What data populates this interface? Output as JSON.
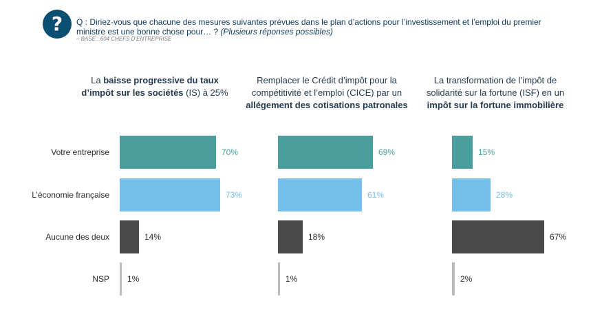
{
  "header": {
    "icon": "question-icon",
    "icon_glyph": "?",
    "question_text": "Q : Diriez-vous que chacune des mesures suivantes prévues dans le plan d’actions pour l’investissement et l’emploi du premier ministre est une bonne chose pour… ?",
    "question_sub": "(Plusieurs réponses possibles)",
    "base": "– BASE : 604 CHEFS D’ENTREPRISE"
  },
  "columns": [
    {
      "t1": "La ",
      "t2": "baisse progressive du taux d’impôt sur les sociétés",
      "t3": " (IS) à 25%"
    },
    {
      "t1": "Remplacer le Crédit d’impôt pour la compétitivité et l’emploi (CICE) par un ",
      "t2": "allégement des cotisations patronales",
      "t3": ""
    },
    {
      "t1": "La transformation de l’impôt de solidarité sur la fortune (ISF) en un ",
      "t2": "impôt sur la fortune immobilière",
      "t3": ""
    }
  ],
  "chart_data": {
    "type": "bar",
    "orientation": "horizontal",
    "categories": [
      "Votre entreprise",
      "L’économie française",
      "Aucune des deux",
      "NSP"
    ],
    "colors": [
      "#4a9e9e",
      "#74c0ea",
      "#4a4a4a",
      "#bdbdbd"
    ],
    "label_colors": [
      "#4a9e9e",
      "#74c0ea",
      "#2b2b2b",
      "#2b2b2b"
    ],
    "panels": [
      {
        "values": [
          70,
          73,
          14,
          1
        ],
        "labels": [
          "70%",
          "73%",
          "14%",
          "1%"
        ]
      },
      {
        "values": [
          69,
          61,
          18,
          1
        ],
        "labels": [
          "69%",
          "61%",
          "18%",
          "1%"
        ]
      },
      {
        "values": [
          15,
          28,
          67,
          2
        ],
        "labels": [
          "15%",
          "28%",
          "67%",
          "2%"
        ]
      }
    ]
  }
}
